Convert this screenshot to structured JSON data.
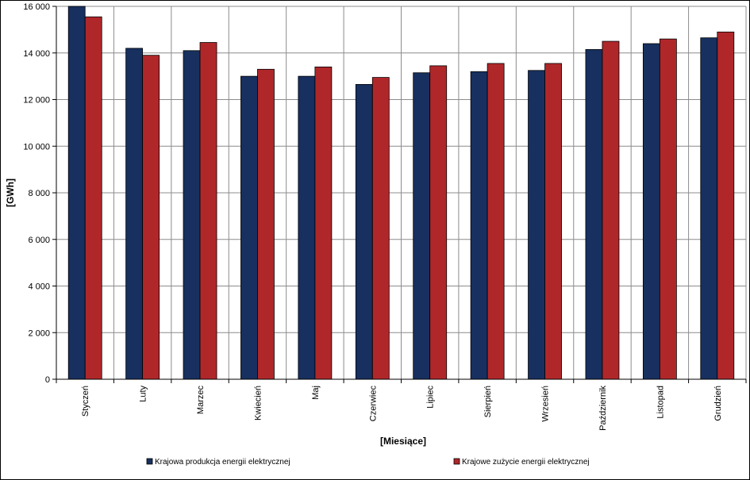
{
  "chart_data": {
    "type": "bar",
    "xlabel": "[Miesiące]",
    "ylabel": "[GWh]",
    "ylim": [
      0,
      16000
    ],
    "ytick_step": 2000,
    "yticks": [
      "0",
      "2 000",
      "4 000",
      "6 000",
      "8 000",
      "10 000",
      "12 000",
      "14 000",
      "16 000"
    ],
    "grid": true,
    "legend_position": "bottom",
    "categories": [
      "Styczeń",
      "Luty",
      "Marzec",
      "Kwiecień",
      "Maj",
      "Czerwiec",
      "Lipiec",
      "Sierpień",
      "Wrzesień",
      "Październik",
      "Listopad",
      "Grudzień"
    ],
    "series": [
      {
        "name": "Krajowa produkcja energii elektrycznej",
        "color": "#17305f",
        "values": [
          16000,
          14200,
          14100,
          13000,
          13000,
          12650,
          13150,
          13200,
          13250,
          14150,
          14400,
          14650
        ]
      },
      {
        "name": "Krajowe zużycie energii elektrycznej",
        "color": "#b0272a",
        "values": [
          15550,
          13900,
          14450,
          13300,
          13400,
          12950,
          13450,
          13550,
          13550,
          14500,
          14600,
          14900
        ]
      }
    ]
  }
}
